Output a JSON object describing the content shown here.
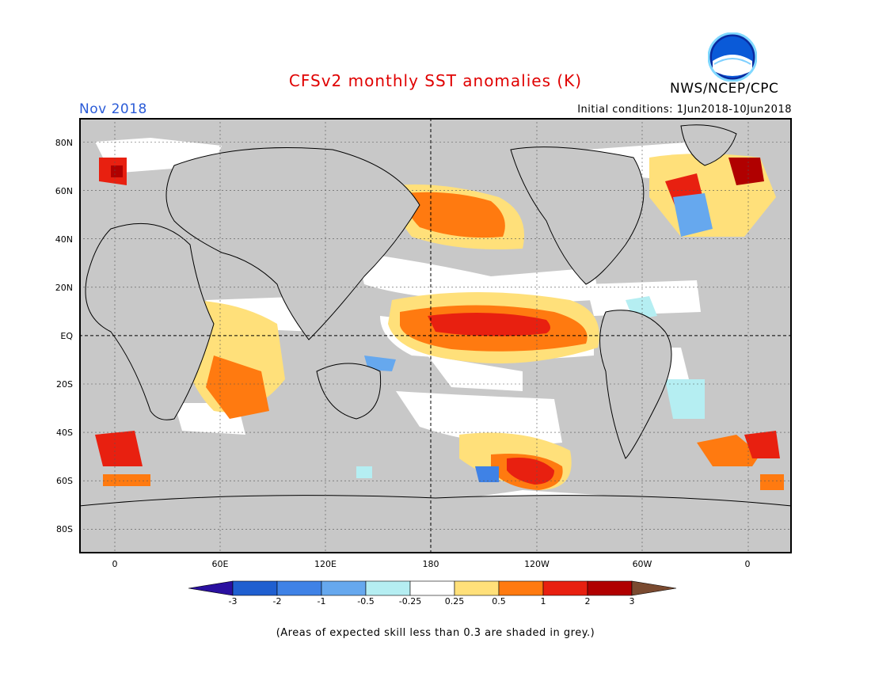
{
  "header": {
    "title": "CFSv2 monthly SST anomalies (K)",
    "org": "NWS/NCEP/CPC",
    "logo_text": "NOAA",
    "month": "Nov 2018",
    "initial_conditions": "Initial conditions: 1Jun2018-10Jun2018"
  },
  "colors": {
    "title": "#e00000",
    "month": "#2a5bd7",
    "land": "#c8c8c8",
    "ocean_skill": "#ffffff"
  },
  "map": {
    "lat_labels": [
      "80N",
      "60N",
      "40N",
      "20N",
      "EQ",
      "20S",
      "40S",
      "60S",
      "80S"
    ],
    "lon_labels": [
      "0",
      "60E",
      "120E",
      "180",
      "120W",
      "60W",
      "0"
    ]
  },
  "colorbar": {
    "labels": [
      "-3",
      "-2",
      "-1",
      "-0.5",
      "-0.25",
      "0.25",
      "0.5",
      "1",
      "2",
      "3"
    ],
    "colors": [
      "#2a10a0",
      "#1f5fd0",
      "#3f82e6",
      "#66a8ee",
      "#b5eef2",
      "#ffffff",
      "#ffe07a",
      "#ff7a10",
      "#e82010",
      "#b00000",
      "#7a4a30"
    ]
  },
  "footnote": "(Areas of expected skill less than 0.3 are shaded in grey.)"
}
